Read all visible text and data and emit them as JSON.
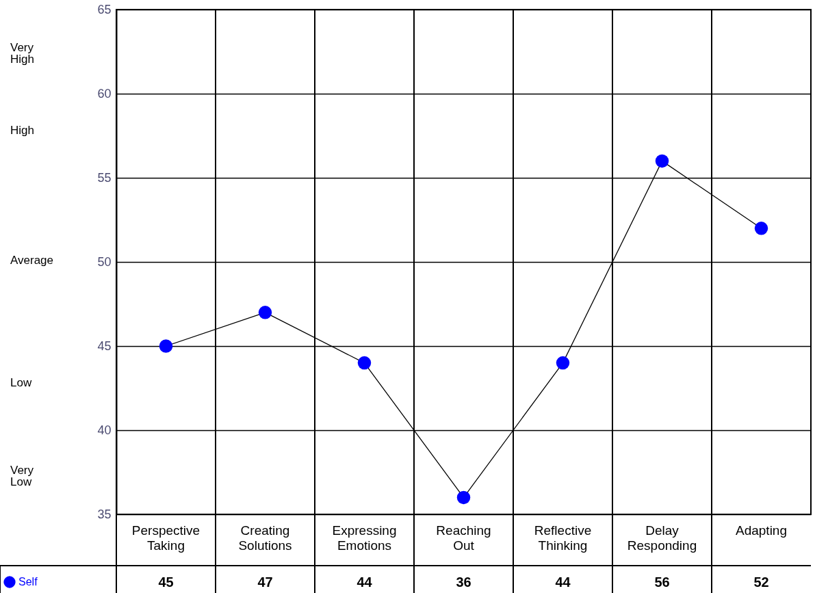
{
  "chart_data": {
    "type": "line",
    "categories": [
      "Perspective Taking",
      "Creating Solutions",
      "Expressing Emotions",
      "Reaching Out",
      "Reflective Thinking",
      "Delay Responding",
      "Adapting"
    ],
    "series": [
      {
        "name": "Self",
        "color": "#0000ff",
        "values": [
          45,
          47,
          44,
          36,
          44,
          56,
          52
        ]
      }
    ],
    "ylim": [
      35,
      65
    ],
    "yticks": [
      35,
      40,
      45,
      50,
      55,
      60,
      65
    ],
    "grid": true,
    "marker": "circle",
    "legend": "bottom left",
    "data_labels": true,
    "annotations": [
      "Very High",
      "High",
      "Average",
      "Low",
      "Very Low"
    ]
  }
}
